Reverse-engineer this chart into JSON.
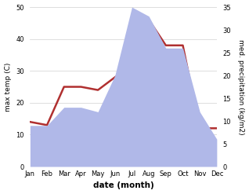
{
  "months": [
    "Jan",
    "Feb",
    "Mar",
    "Apr",
    "May",
    "Jun",
    "Jul",
    "Aug",
    "Sep",
    "Oct",
    "Nov",
    "Dec"
  ],
  "temperature": [
    14,
    13,
    25,
    25,
    24,
    28,
    32,
    46,
    38,
    38,
    12,
    12
  ],
  "precipitation": [
    9,
    9,
    13,
    13,
    12,
    20,
    35,
    33,
    26,
    26,
    12,
    6
  ],
  "temp_ylim": [
    0,
    50
  ],
  "temp_yticks": [
    0,
    10,
    20,
    30,
    40,
    50
  ],
  "precip_ylim": [
    0,
    35
  ],
  "precip_yticks": [
    0,
    5,
    10,
    15,
    20,
    25,
    30,
    35
  ],
  "temp_color": "#b03030",
  "precip_fill_color": "#b0b8e8",
  "xlabel": "date (month)",
  "ylabel_left": "max temp (C)",
  "ylabel_right": "med. precipitation (kg/m2)",
  "temp_linewidth": 1.8,
  "bg_color": "#ffffff",
  "grid_color": "#d0d0d0",
  "tick_fontsize": 6,
  "label_fontsize": 6.5,
  "xlabel_fontsize": 7.5
}
